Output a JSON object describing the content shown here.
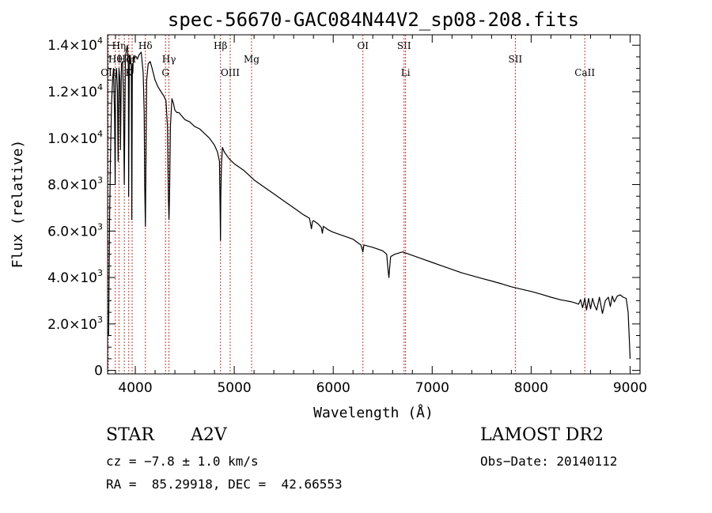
{
  "chart_data": {
    "type": "line",
    "title": "spec-56670-GAC084N44V2_sp08-208.fits",
    "xlabel": "Wavelength (Å)",
    "ylabel": "Flux (relative)",
    "xlim": [
      3720,
      9100
    ],
    "ylim": [
      -150,
      14450
    ],
    "x_ticks": [
      4000,
      5000,
      6000,
      7000,
      8000,
      9000
    ],
    "x_tick_labels": [
      "4000",
      "5000",
      "6000",
      "7000",
      "8000",
      "9000"
    ],
    "y_ticks": [
      0,
      2000,
      4000,
      6000,
      8000,
      10000,
      12000,
      14000
    ],
    "y_tick_labels": [
      {
        "mant": "0",
        "exp": ""
      },
      {
        "mant": "2.0×10",
        "exp": "3"
      },
      {
        "mant": "4.0×10",
        "exp": "3"
      },
      {
        "mant": "6.0×10",
        "exp": "3"
      },
      {
        "mant": "8.0×10",
        "exp": "3"
      },
      {
        "mant": "1.0×10",
        "exp": "4"
      },
      {
        "mant": "1.2×10",
        "exp": "4"
      },
      {
        "mant": "1.4×10",
        "exp": "4"
      }
    ],
    "series": [
      {
        "x": [
          3730,
          3740,
          3750,
          3760,
          3770,
          3780,
          3790,
          3797,
          3800,
          3810,
          3820,
          3826,
          3835,
          3845,
          3850,
          3860,
          3870,
          3880,
          3889,
          3895,
          3900,
          3910,
          3920,
          3930,
          3933,
          3940,
          3950,
          3960,
          3965,
          3970,
          3975,
          3980,
          3990,
          4000,
          4010,
          4020,
          4040,
          4060,
          4080,
          4090,
          4095,
          4102,
          4108,
          4115,
          4130,
          4150,
          4170,
          4200,
          4230,
          4260,
          4290,
          4310,
          4325,
          4334,
          4340,
          4346,
          4355,
          4370,
          4385,
          4400,
          4420,
          4440,
          4460,
          4480,
          4500,
          4550,
          4600,
          4650,
          4700,
          4750,
          4800,
          4830,
          4850,
          4858,
          4861,
          4864,
          4870,
          4880,
          4900,
          4950,
          5000,
          5100,
          5200,
          5300,
          5400,
          5500,
          5600,
          5700,
          5760,
          5780,
          5790,
          5800,
          5850,
          5880,
          5890,
          5900,
          5950,
          6000,
          6100,
          6200,
          6280,
          6290,
          6300,
          6310,
          6400,
          6500,
          6540,
          6555,
          6563,
          6570,
          6580,
          6620,
          6700,
          6800,
          6900,
          7000,
          7100,
          7200,
          7300,
          7400,
          7500,
          7600,
          7700,
          7800,
          7900,
          8000,
          8100,
          8200,
          8300,
          8400,
          8450,
          8480,
          8500,
          8520,
          8542,
          8560,
          8580,
          8600,
          8620,
          8640,
          8662,
          8690,
          8720,
          8750,
          8780,
          8800,
          8820,
          8840,
          8870,
          8900,
          8930,
          8960,
          8980,
          8995,
          9000
        ],
        "y": [
          1500,
          6500,
          9500,
          11500,
          12500,
          13000,
          11000,
          8000,
          12500,
          13000,
          12000,
          9000,
          13000,
          12500,
          9500,
          13200,
          13300,
          12000,
          8000,
          11000,
          13500,
          13800,
          14000,
          13000,
          7500,
          13500,
          13500,
          13000,
          6500,
          13200,
          12800,
          13500,
          13400,
          13500,
          13500,
          13400,
          13600,
          13700,
          12800,
          11000,
          8000,
          6200,
          9000,
          12500,
          13200,
          13300,
          13000,
          12500,
          12200,
          12000,
          11800,
          11600,
          10500,
          7500,
          6500,
          7500,
          10500,
          11700,
          11500,
          11200,
          11100,
          11100,
          11000,
          10900,
          10800,
          10700,
          10500,
          10400,
          10200,
          10000,
          9700,
          9400,
          9000,
          6500,
          5600,
          7500,
          8800,
          9600,
          9400,
          9100,
          8900,
          8600,
          8200,
          7900,
          7600,
          7300,
          7000,
          6700,
          6550,
          6100,
          6400,
          6450,
          6300,
          6150,
          5900,
          6200,
          6050,
          5950,
          5800,
          5650,
          5400,
          5250,
          5100,
          5400,
          5300,
          5150,
          5000,
          4300,
          4000,
          4400,
          4900,
          5000,
          5100,
          4950,
          4800,
          4650,
          4500,
          4350,
          4200,
          4080,
          3960,
          3850,
          3730,
          3600,
          3500,
          3400,
          3280,
          3150,
          3040,
          2960,
          2900,
          2850,
          3050,
          2700,
          3100,
          2600,
          3100,
          2650,
          3100,
          2800,
          2600,
          3150,
          2450,
          3000,
          3150,
          2750,
          3200,
          2950,
          3200,
          3250,
          3150,
          3100,
          2500,
          1000,
          500
        ]
      }
    ],
    "spectral_lines": [
      {
        "label": "OII",
        "wave": 3727,
        "row": 3
      },
      {
        "label": "Hθ",
        "wave": 3798,
        "row": 2
      },
      {
        "label": "Hη",
        "wave": 3835,
        "row": 1
      },
      {
        "label": "Hζ",
        "wave": 3889,
        "row": 2
      },
      {
        "label": "K",
        "wave": 3934,
        "row": 3
      },
      {
        "label": "H",
        "wave": 3968,
        "row": 2
      },
      {
        "label": "Hδ",
        "wave": 4102,
        "row": 1
      },
      {
        "label": "G",
        "wave": 4305,
        "row": 3
      },
      {
        "label": "Hγ",
        "wave": 4340,
        "row": 2
      },
      {
        "label": "Hβ",
        "wave": 4861,
        "row": 1
      },
      {
        "label": "OIII",
        "wave": 4959,
        "row": 3
      },
      {
        "label": "Mg",
        "wave": 5175,
        "row": 2
      },
      {
        "label": "OI",
        "wave": 6300,
        "row": 1
      },
      {
        "label": "SII",
        "wave": 6716,
        "row": 1
      },
      {
        "label": "Li",
        "wave": 6731,
        "row": 3
      },
      {
        "label": "SII",
        "wave": 7840,
        "row": 2
      },
      {
        "label": "CaII",
        "wave": 8542,
        "row": 3
      }
    ]
  },
  "info": {
    "object_class": "STAR",
    "subclass": "A2V",
    "survey": "LAMOST DR2",
    "cz": "cz = −7.8 ± 1.0 km/s",
    "obs_date": "Obs−Date: 20140112",
    "radec": "RA =  85.29918, DEC =  42.66553"
  },
  "colors": {
    "spectrum": "#000000",
    "line_markers": "#c0392b",
    "axes": "#000000"
  }
}
